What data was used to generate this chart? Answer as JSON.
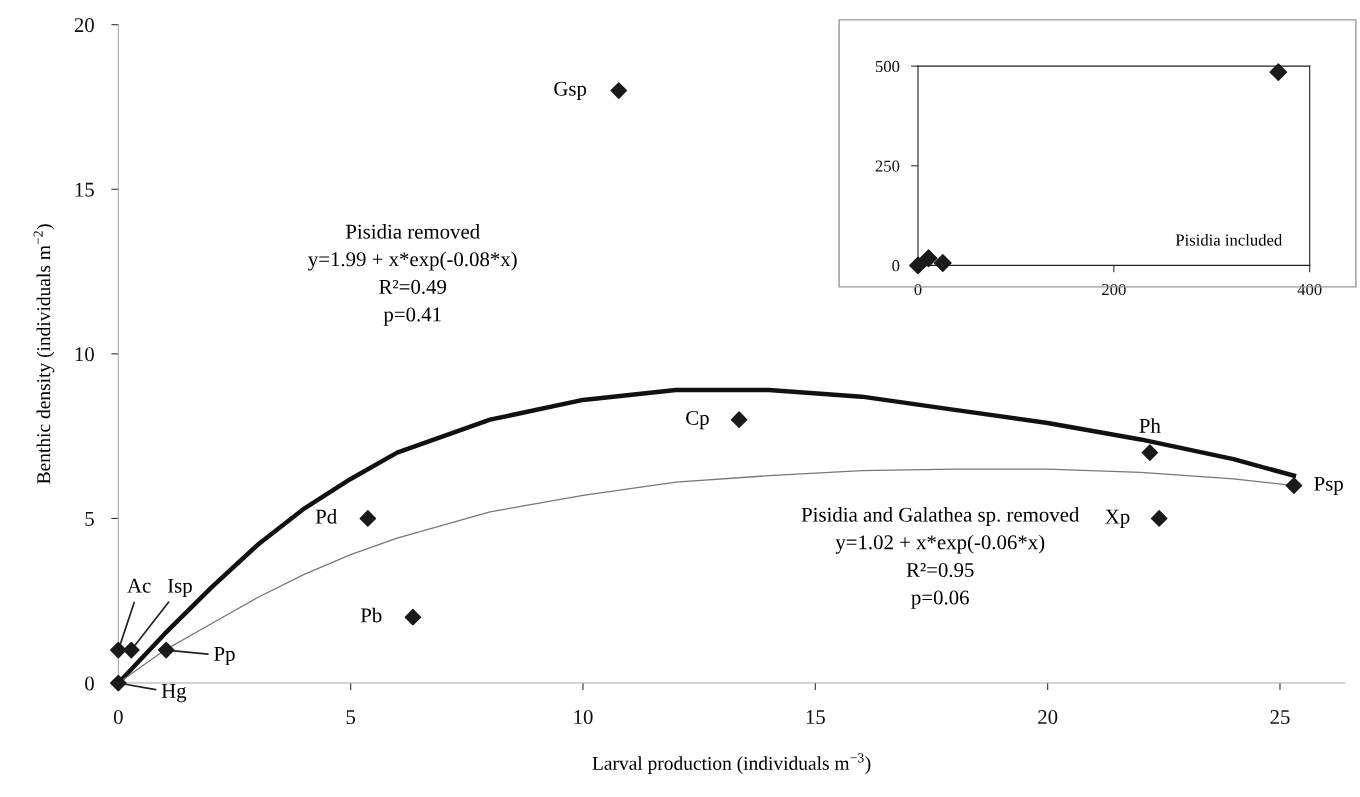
{
  "chart_data": [
    {
      "type": "scatter",
      "xlabel": "Larval production (individuals m$^{−3}$)",
      "ylabel": "Benthic density (individuals m$^{−2}$)",
      "xlim": [
        0,
        26.4
      ],
      "ylim": [
        0,
        20
      ],
      "xticks": [
        0,
        5,
        10,
        15,
        20,
        25
      ],
      "yticks": [
        0,
        5,
        10,
        15,
        20
      ],
      "grid": false,
      "series": [
        {
          "type": "scatter",
          "marker": "diamond",
          "color": "#1a1a1a",
          "x": [
            0,
            0,
            0.28,
            1.03,
            5.37,
            6.34,
            10.77,
            13.36,
            22.2,
            22.4,
            25.3
          ],
          "values": [
            0,
            1,
            1,
            1,
            5,
            2,
            18,
            8,
            7,
            5,
            6
          ]
        },
        {
          "type": "line",
          "color": "#111111",
          "x": [
            0,
            1,
            2,
            3,
            4,
            5,
            6,
            8,
            10,
            12,
            14,
            16,
            18,
            20,
            22,
            24,
            25.3
          ],
          "values": [
            0,
            1.5,
            2.9,
            4.2,
            5.3,
            6.2,
            7.0,
            8.0,
            8.6,
            8.9,
            8.9,
            8.7,
            8.3,
            7.9,
            7.4,
            6.8,
            6.3
          ]
        },
        {
          "type": "line",
          "color": "#777777",
          "x": [
            0,
            1,
            2,
            3,
            4,
            5,
            6,
            8,
            10,
            12,
            14,
            16,
            18,
            20,
            22,
            24,
            25.3
          ],
          "values": [
            0,
            1.0,
            1.8,
            2.6,
            3.3,
            3.9,
            4.4,
            5.2,
            5.7,
            6.1,
            6.3,
            6.45,
            6.5,
            6.5,
            6.4,
            6.2,
            6.0
          ]
        }
      ],
      "annotations": [
        {
          "text": "Hg",
          "x": 0,
          "y": 0
        },
        {
          "text": "Ac",
          "x": 0,
          "y": 1
        },
        {
          "text": "Isp",
          "x": 0.28,
          "y": 1
        },
        {
          "text": "Pp",
          "x": 1.03,
          "y": 1
        },
        {
          "text": "Pd",
          "x": 5.37,
          "y": 5
        },
        {
          "text": "Pb",
          "x": 6.34,
          "y": 2
        },
        {
          "text": "Gsp",
          "x": 10.77,
          "y": 18
        },
        {
          "text": "Cp",
          "x": 13.36,
          "y": 8
        },
        {
          "text": "Ph",
          "x": 22.2,
          "y": 7
        },
        {
          "text": "Xp",
          "x": 22.4,
          "y": 5
        },
        {
          "text": "Psp",
          "x": 25.3,
          "y": 6
        },
        "Pisidia removed\ny=1.99 + x*exp(-0.08*x)\nR²=0.49\np=0.41",
        "Pisidia and Galathea sp. removed\ny=1.02 + x*exp(-0.06*x)\nR²=0.95\np=0.06"
      ]
    },
    {
      "type": "scatter",
      "xlim": [
        0,
        400
      ],
      "ylim": [
        0,
        500
      ],
      "xticks": [
        0,
        200,
        400
      ],
      "yticks": [
        0,
        250,
        500
      ],
      "grid": false,
      "series": [
        {
          "type": "scatter",
          "marker": "diamond",
          "color": "#1a1a1a",
          "x": [
            0,
            10.77,
            25.3,
            368
          ],
          "values": [
            0,
            18,
            6,
            485
          ]
        }
      ],
      "annotations": [
        "Pisidia included"
      ]
    }
  ]
}
